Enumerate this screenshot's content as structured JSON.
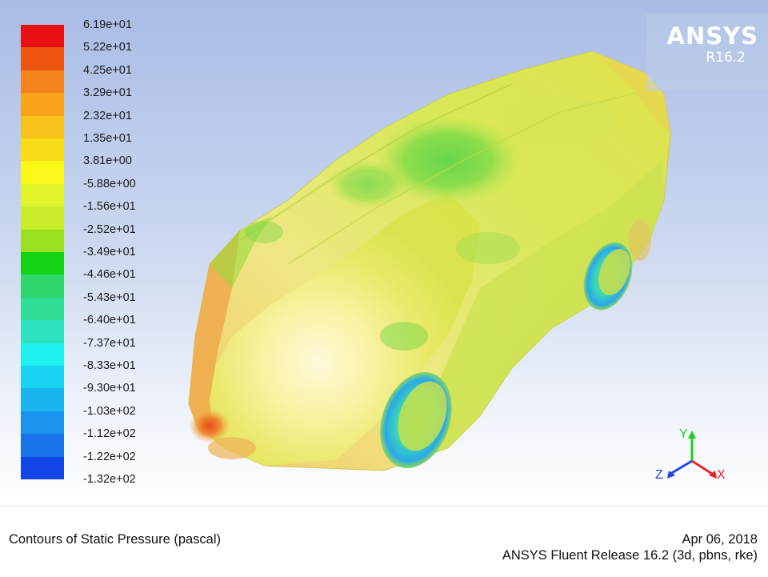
{
  "colorbar": {
    "labels": [
      "6.19e+01",
      "5.22e+01",
      "4.25e+01",
      "3.29e+01",
      "2.32e+01",
      "1.35e+01",
      "3.81e+00",
      "-5.88e+00",
      "-1.56e+01",
      "-2.52e+01",
      "-3.49e+01",
      "-4.46e+01",
      "-5.43e+01",
      "-6.40e+01",
      "-7.37e+01",
      "-8.33e+01",
      "-9.30e+01",
      "-1.03e+02",
      "-1.12e+02",
      "-1.22e+02",
      "-1.32e+02"
    ],
    "colors": [
      "#e81010",
      "#ef5512",
      "#f4841a",
      "#f7a41a",
      "#f9c21a",
      "#fadd1a",
      "#fbf81a",
      "#e2f52a",
      "#c8ec2a",
      "#98e020",
      "#14d214",
      "#2ed66c",
      "#30dd95",
      "#2ee3c0",
      "#1ff2ee",
      "#18d2f2",
      "#1ab4f0",
      "#1a94ec",
      "#1a72e8",
      "#1246e6"
    ]
  },
  "logo": {
    "name": "ANSYS",
    "version": "R16.2"
  },
  "axes": {
    "y": "Y",
    "z": "Z",
    "x": "X"
  },
  "footer": {
    "title": "Contours of Static Pressure (pascal)",
    "date": "Apr 06, 2018",
    "release": "ANSYS Fluent Release 16.2 (3d, pbns, rke)"
  },
  "colors": {
    "y_axis": "#22cc22",
    "z_axis": "#2244ee",
    "x_axis": "#ee2222"
  }
}
